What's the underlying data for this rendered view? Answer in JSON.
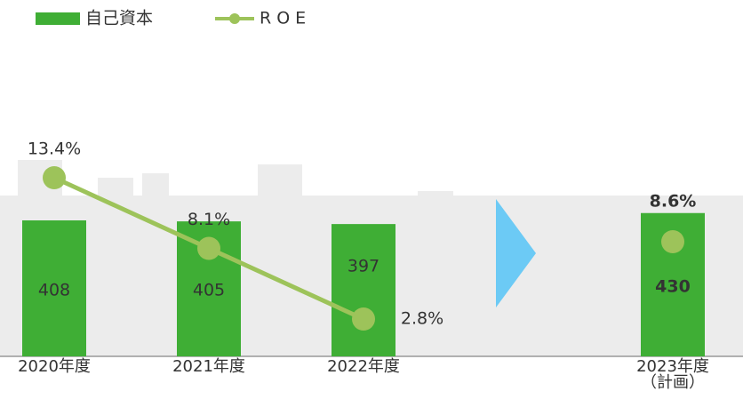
{
  "chart_data": {
    "type": "bar-line",
    "categories": [
      "2020年度",
      "2021年度",
      "2022年度",
      null,
      "2023年度\n（計画）"
    ],
    "series": [
      {
        "name": "自己資本",
        "color": "#3fae35",
        "values": [
          408,
          405,
          397,
          null,
          430
        ]
      },
      {
        "name": "ROE",
        "color": "#9dc35a",
        "axis": "y2",
        "values": [
          13.4,
          8.1,
          2.8,
          null,
          8.6
        ],
        "value_labels": [
          "13.4%",
          "8.1%",
          "2.8%",
          null,
          "8.6%"
        ]
      }
    ],
    "ylim": [
      0,
      1000
    ],
    "y2lim": [
      0,
      25
    ],
    "separator_color": "#6ccaf5"
  }
}
